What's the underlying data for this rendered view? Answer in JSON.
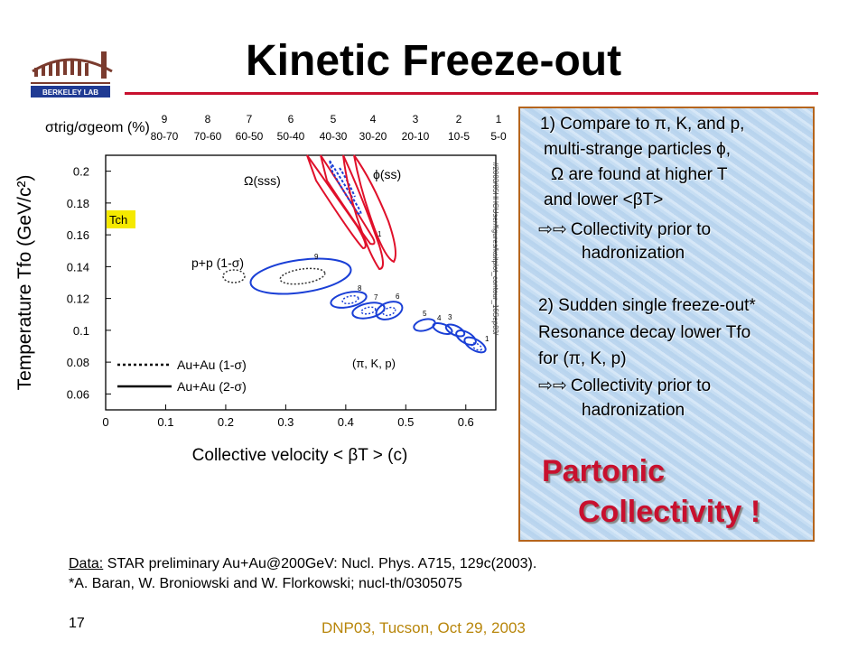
{
  "slide": {
    "title": "Kinetic Freeze-out",
    "logo_text": "BERKELEY LAB",
    "page_number": "17",
    "conference": "DNP03, Tucson, Oct 29, 2003",
    "footnote_data_label": "Data:",
    "footnote_data_text": " STAR preliminary Au+Au@200GeV: Nucl. Phys. A715, 129c(2003).",
    "footnote_ref": "*A. Baran, W. Broniowski and W. Florkowski; nucl-th/0305075"
  },
  "box": {
    "l1": "1) Compare to π, K, and p,",
    "l2": "multi-strange particles ϕ,",
    "l3": "Ω are found at higher T",
    "l4": "and lower <βT>",
    "l5": "Collectivity prior to",
    "l6": "hadronization",
    "l7": "2) Sudden single freeze-out*",
    "l8": "Resonance decay lower Tfo",
    "l9": "for (π, K, p)",
    "l10": "Collectivity prior to",
    "l11": "hadronization",
    "p1": "Partonic",
    "p2": "Collectivity !"
  },
  "colors": {
    "title_rule": "#c8102e",
    "partonic": "#c8102e",
    "conference": "#b8860b",
    "box_border": "#b5651d",
    "omega_phi": "#e0102a",
    "pkp": "#1a3fd6",
    "tch_box": "#f5e900"
  },
  "icons": {
    "arrow": "double-outline-right-arrow-icon"
  },
  "chart_data": {
    "type": "scatter",
    "xlabel": "Collective velocity < βT > (c)",
    "ylabel": "Temperature Tfo (GeV/c²)",
    "xlim": [
      0,
      0.65
    ],
    "ylim": [
      0.05,
      0.21
    ],
    "xticks": [
      "0",
      "0.1",
      "0.2",
      "0.3",
      "0.4",
      "0.5",
      "0.6"
    ],
    "yticks": [
      "0.06",
      "0.08",
      "0.1",
      "0.12",
      "0.14",
      "0.16",
      "0.18",
      "0.2"
    ],
    "top_axis_label": "σtrig/σgeom (%)",
    "centrality_bins": [
      {
        "bin": "9",
        "range": "80-70"
      },
      {
        "bin": "8",
        "range": "70-60"
      },
      {
        "bin": "7",
        "range": "60-50"
      },
      {
        "bin": "6",
        "range": "50-40"
      },
      {
        "bin": "5",
        "range": "40-30"
      },
      {
        "bin": "4",
        "range": "30-20"
      },
      {
        "bin": "3",
        "range": "20-10"
      },
      {
        "bin": "2",
        "range": "10-5"
      },
      {
        "bin": "1",
        "range": "5-0"
      }
    ],
    "annotations": {
      "omega": "Ω(sss)",
      "phi": "ϕ(ss)",
      "pp": "p+p (1-σ)",
      "tch": "Tch",
      "pikp": "(π, K, p)",
      "vertical_path": "//2003/05HHCUser/figures/kaitplot_contour_16Sep03/"
    },
    "legend": {
      "position": "bottom-left",
      "entries": [
        {
          "label": "Au+Au (1-σ)",
          "style": "dotted"
        },
        {
          "label": "Au+Au (2-σ)",
          "style": "solid"
        }
      ]
    },
    "series": [
      {
        "name": "Ω(sss)",
        "contours": [
          {
            "beta": 0.36,
            "T": 0.205,
            "sigma": "2"
          },
          {
            "beta": 0.39,
            "T": 0.19,
            "sigma": "2"
          },
          {
            "beta": 0.395,
            "T": 0.185,
            "sigma": "1"
          }
        ]
      },
      {
        "name": "ϕ(ss)",
        "contours": [
          {
            "beta": 0.46,
            "T": 0.17,
            "sigma": "2",
            "label": "1"
          },
          {
            "beta": 0.45,
            "T": 0.18,
            "sigma": "2"
          }
        ]
      },
      {
        "name": "(π, K, p)",
        "contours": [
          {
            "bin": "9",
            "beta": 0.33,
            "T": 0.132,
            "sigma": "2"
          },
          {
            "bin": "8",
            "beta": 0.4,
            "T": 0.111,
            "sigma": "2"
          },
          {
            "bin": "7",
            "beta": 0.43,
            "T": 0.106,
            "sigma": "2"
          },
          {
            "bin": "6",
            "beta": 0.46,
            "T": 0.107,
            "sigma": "2"
          },
          {
            "bin": "5",
            "beta": 0.51,
            "T": 0.098,
            "sigma": "2"
          },
          {
            "bin": "4",
            "beta": 0.545,
            "T": 0.095,
            "sigma": "2"
          },
          {
            "bin": "3",
            "beta": 0.57,
            "T": 0.092,
            "sigma": "2"
          },
          {
            "bin": "2",
            "beta": 0.59,
            "T": 0.088,
            "sigma": "2"
          },
          {
            "bin": "1",
            "beta": 0.605,
            "T": 0.085,
            "sigma": "2"
          }
        ]
      },
      {
        "name": "p+p (1-σ)",
        "contours": [
          {
            "beta": 0.25,
            "T": 0.134,
            "sigma": "1"
          }
        ]
      }
    ]
  }
}
